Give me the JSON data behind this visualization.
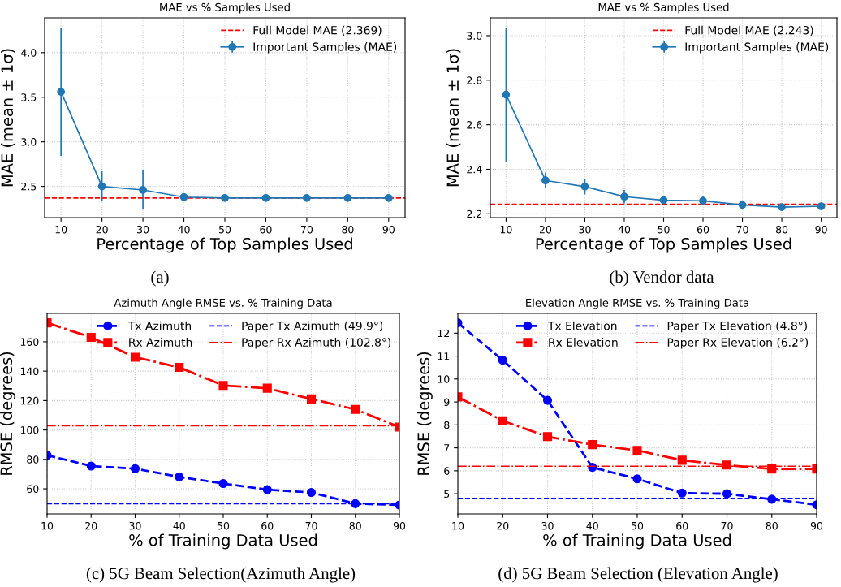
{
  "chart_data": [
    {
      "type": "line",
      "title": "MAE vs % Samples Used",
      "xlabel": "Percentage of Top Samples Used",
      "ylabel": "MAE (mean ± 1σ)",
      "x": [
        10,
        20,
        30,
        40,
        50,
        60,
        70,
        80,
        90
      ],
      "xlim": [
        6,
        94
      ],
      "xticks": [
        10,
        20,
        30,
        40,
        50,
        60,
        70,
        80,
        90
      ],
      "ylim": [
        2.15,
        4.39
      ],
      "yticks": [
        {
          "value": 2.5,
          "label": "2.5"
        },
        {
          "value": 3.0,
          "label": "3.0"
        },
        {
          "value": 3.5,
          "label": "3.5"
        },
        {
          "value": 4.0,
          "label": "4.0"
        }
      ],
      "grid": true,
      "legend": "top right",
      "marker": "circle",
      "series": [
        {
          "name": "Important Samples (MAE)",
          "color": "#1f77b4",
          "line_style": "solid",
          "values": [
            3.56,
            2.5,
            2.46,
            2.38,
            2.37,
            2.37,
            2.37,
            2.37,
            2.37
          ],
          "errors": [
            0.72,
            0.17,
            0.22,
            null,
            null,
            null,
            null,
            null,
            null
          ]
        }
      ],
      "ref_lines": [
        {
          "axis": "y",
          "value": 2.369,
          "label": "Full Model MAE (2.369)",
          "color": "#ff0000",
          "line_style": "dashed"
        }
      ],
      "annotations": [
        "(a)"
      ]
    },
    {
      "type": "line",
      "title": "MAE vs % Samples Used",
      "xlabel": "Percentage of Top Samples Used",
      "ylabel": "MAE (mean ± 1σ)",
      "x": [
        10,
        20,
        30,
        40,
        50,
        60,
        70,
        80,
        90
      ],
      "xlim": [
        6,
        94
      ],
      "xticks": [
        10,
        20,
        30,
        40,
        50,
        60,
        70,
        80,
        90
      ],
      "ylim": [
        2.183,
        3.08
      ],
      "yticks": [
        {
          "value": 2.2,
          "label": "2.2"
        },
        {
          "value": 2.4,
          "label": "2.4"
        },
        {
          "value": 2.6,
          "label": "2.6"
        },
        {
          "value": 2.8,
          "label": "2.8"
        },
        {
          "value": 3.0,
          "label": "3.0"
        }
      ],
      "grid": true,
      "legend": "top right",
      "marker": "circle",
      "series": [
        {
          "name": "Important Samples (MAE)",
          "color": "#1f77b4",
          "line_style": "solid",
          "values": [
            2.735,
            2.35,
            2.322,
            2.277,
            2.261,
            2.258,
            2.24,
            2.23,
            2.234
          ],
          "errors": [
            0.3,
            0.035,
            0.035,
            0.03,
            0.015,
            0.02,
            0.02,
            null,
            null
          ]
        }
      ],
      "ref_lines": [
        {
          "axis": "y",
          "value": 2.243,
          "label": "Full Model MAE (2.243)",
          "color": "#ff0000",
          "line_style": "dashed"
        }
      ],
      "annotations": [
        "(b) Vendor data"
      ]
    },
    {
      "type": "line",
      "title": "Azimuth Angle RMSE vs. % Training Data",
      "xlabel": "% of Training Data Used",
      "ylabel": "RMSE (degrees)",
      "x": [
        10,
        20,
        30,
        40,
        50,
        60,
        70,
        80,
        90
      ],
      "xlim": [
        10,
        90
      ],
      "xticks": [
        10,
        20,
        30,
        40,
        50,
        60,
        70,
        80,
        90
      ],
      "ylim": [
        42.9,
        179.3
      ],
      "yticks": [
        60,
        80,
        100,
        120,
        140,
        160
      ],
      "grid": true,
      "legend": "top right",
      "series": [
        {
          "name": "Tx Azimuth",
          "color": "#0000ff",
          "marker": "circle",
          "line_style": "dashed",
          "values": [
            82.8,
            75.5,
            73.7,
            68.1,
            63.6,
            59.4,
            57.5,
            49.9,
            49.0
          ]
        },
        {
          "name": "Rx Azimuth",
          "color": "#ff0000",
          "marker": "square",
          "line_style": "dashdot",
          "values": [
            172.9,
            163.0,
            149.5,
            142.6,
            130.3,
            128.4,
            121.1,
            114.0,
            102.0
          ]
        }
      ],
      "ref_lines": [
        {
          "axis": "y",
          "value": 49.9,
          "label": "Paper Tx Azimuth (49.9°)",
          "color": "#0000ff",
          "line_style": "dashed"
        },
        {
          "axis": "y",
          "value": 102.8,
          "label": "Paper Rx Azimuth (102.8°)",
          "color": "#ff0000",
          "line_style": "dashdot"
        }
      ],
      "annotations": [
        "(c) 5G Beam Selection(Azimuth Angle)"
      ]
    },
    {
      "type": "line",
      "title": "Elevation Angle RMSE vs. % Training Data",
      "xlabel": "% of Training Data Used",
      "ylabel": "RMSE (degrees)",
      "x": [
        10,
        20,
        30,
        40,
        50,
        60,
        70,
        80,
        90
      ],
      "xlim": [
        10,
        90
      ],
      "xticks": [
        10,
        20,
        30,
        40,
        50,
        60,
        70,
        80,
        90
      ],
      "ylim": [
        4.12,
        12.86
      ],
      "yticks": [
        5,
        6,
        7,
        8,
        9,
        10,
        11,
        12
      ],
      "grid": true,
      "legend": "top right",
      "series": [
        {
          "name": "Tx Elevation",
          "color": "#0000ff",
          "marker": "circle",
          "line_style": "dashed",
          "values": [
            12.45,
            10.82,
            9.07,
            6.15,
            5.65,
            5.03,
            5.0,
            4.76,
            4.52
          ]
        },
        {
          "name": "Rx Elevation",
          "color": "#ff0000",
          "marker": "square",
          "line_style": "dashdot",
          "values": [
            9.22,
            8.18,
            7.49,
            7.14,
            6.89,
            6.46,
            6.25,
            6.08,
            6.08
          ]
        }
      ],
      "ref_lines": [
        {
          "axis": "y",
          "value": 4.8,
          "label": "Paper Tx Elevation (4.8°)",
          "color": "#0000ff",
          "line_style": "dashed"
        },
        {
          "axis": "y",
          "value": 6.2,
          "label": "Paper Rx Elevation (6.2°)",
          "color": "#ff0000",
          "line_style": "dashdot"
        }
      ],
      "annotations": [
        "(d) 5G Beam Selection (Elevation Angle)"
      ]
    }
  ]
}
